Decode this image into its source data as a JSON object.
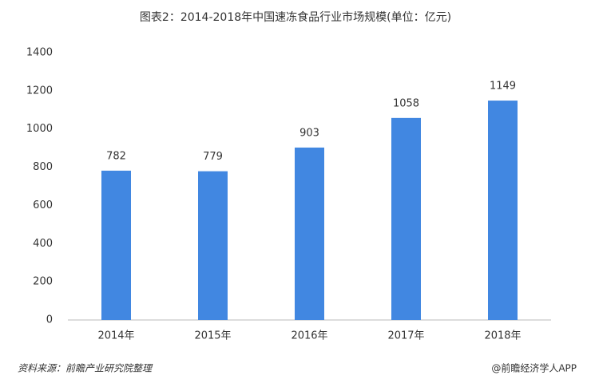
{
  "chart_data": {
    "type": "bar",
    "title": "图表2：2014-2018年中国速冻食品行业市场规模(单位：亿元)",
    "categories": [
      "2014年",
      "2015年",
      "2016年",
      "2017年",
      "2018年"
    ],
    "values": [
      782,
      779,
      903,
      1058,
      1149
    ],
    "color": "#4187e1",
    "ylim": [
      0,
      1400
    ],
    "yticks": [
      0,
      200,
      400,
      600,
      800,
      1000,
      1200,
      1400
    ],
    "grid": false,
    "source": "资料来源：前瞻产业研究院整理",
    "credit": "@前瞻经济学人APP"
  }
}
